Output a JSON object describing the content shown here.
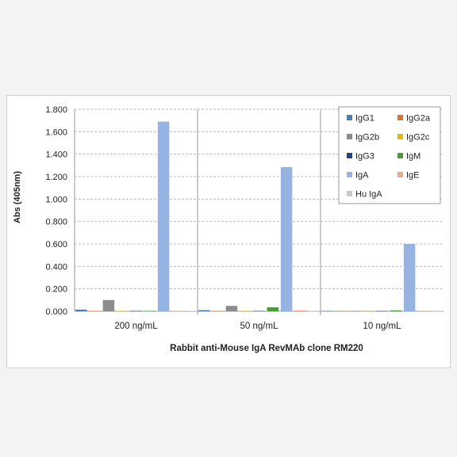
{
  "chart_data": {
    "type": "bar",
    "xlabel": "Rabbit anti-Mouse  IgA RevMAb clone RM220",
    "ylabel": "Abs (405nm)",
    "ylim": [
      0,
      1.8
    ],
    "yticks": [
      "0.000",
      "0.200",
      "0.400",
      "0.600",
      "0.800",
      "1.000",
      "1.200",
      "1.400",
      "1.600",
      "1.800"
    ],
    "grid": true,
    "legend_position": "top-right",
    "categories": [
      "200 ng/mL",
      "50 ng/mL",
      "10 ng/mL"
    ],
    "series": [
      {
        "name": "IgG1",
        "color": "#4a7ebb",
        "values": [
          0.015,
          0.01,
          0.003
        ]
      },
      {
        "name": "IgG2a",
        "color": "#e0702a",
        "values": [
          0.003,
          0.003,
          0.002
        ]
      },
      {
        "name": "IgG2b",
        "color": "#8c8c8c",
        "values": [
          0.1,
          0.048,
          0.003
        ]
      },
      {
        "name": "IgG2c",
        "color": "#f0b400",
        "values": [
          0.003,
          0.003,
          0.002
        ]
      },
      {
        "name": "IgG3",
        "color": "#24418c",
        "values": [
          0.003,
          0.003,
          0.002
        ]
      },
      {
        "name": "IgM",
        "color": "#4e9a3a",
        "values": [
          0.004,
          0.035,
          0.008
        ]
      },
      {
        "name": "IgA",
        "color": "#95b4e2",
        "values": [
          1.69,
          1.285,
          0.6
        ]
      },
      {
        "name": "IgE",
        "color": "#f2a58a",
        "values": [
          0.003,
          0.008,
          0.002
        ]
      },
      {
        "name": "Hu IgA",
        "color": "#c8c8c8",
        "values": [
          0.003,
          0.003,
          0.002
        ]
      }
    ]
  }
}
